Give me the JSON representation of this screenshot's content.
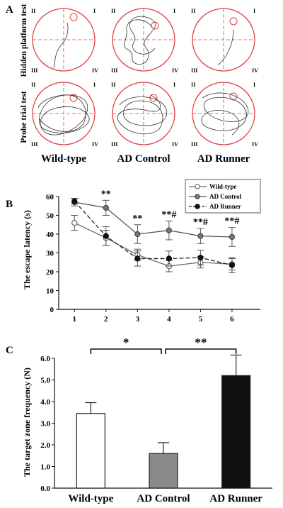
{
  "panel_a": {
    "letter": "A",
    "row_labels": [
      "Hidden platform test",
      "Probe trial test"
    ],
    "group_labels": [
      "Wild-type",
      "AD Control",
      "AD Runner"
    ],
    "quadrant_labels": [
      "II",
      "I",
      "III",
      "IV"
    ],
    "colors": {
      "pool": "#e14040",
      "path": "#333333"
    }
  },
  "chart_data": [
    {
      "type": "line",
      "panel": "B",
      "title": "",
      "xlabel": "",
      "ylabel": "The escape latency (s)",
      "x": [
        1,
        2,
        3,
        4,
        5,
        6
      ],
      "xlim": [
        0.5,
        6.9
      ],
      "ylim": [
        0,
        60
      ],
      "yticks": [
        0,
        10,
        20,
        30,
        40,
        50,
        60
      ],
      "grid": false,
      "legend": "top-right",
      "series": [
        {
          "name": "Wild-type",
          "marker": "open-circle",
          "line": "solid",
          "values": [
            46,
            38,
            29,
            23,
            25,
            24
          ],
          "errors": [
            4,
            4,
            3,
            3,
            3,
            3
          ]
        },
        {
          "name": "AD Control",
          "marker": "gray-circle",
          "line": "solid",
          "values": [
            57,
            54,
            40,
            42,
            39,
            38.5
          ],
          "errors": [
            2,
            4,
            5,
            5,
            4,
            5
          ]
        },
        {
          "name": "AD Runner",
          "marker": "filled-circle",
          "line": "dashed",
          "values": [
            57.5,
            39,
            27,
            27,
            27.5,
            23.5
          ],
          "errors": [
            1.5,
            5,
            4,
            4,
            4,
            4
          ]
        }
      ],
      "annotations": [
        {
          "x": 2,
          "text": "**"
        },
        {
          "x": 3,
          "text": "**"
        },
        {
          "x": 4,
          "text": "**#"
        },
        {
          "x": 5,
          "text": "**#"
        },
        {
          "x": 6,
          "text": "**#"
        }
      ]
    },
    {
      "type": "bar",
      "panel": "C",
      "title": "",
      "xlabel": "",
      "ylabel": "The target zone frequency (N)",
      "categories": [
        "Wild-type",
        "AD Control",
        "AD Runner"
      ],
      "values": [
        3.45,
        1.6,
        5.2
      ],
      "errors": [
        0.5,
        0.5,
        0.95
      ],
      "colors": [
        "#ffffff",
        "#8a8a8a",
        "#111111"
      ],
      "ylim": [
        0,
        6.0
      ],
      "yticks": [
        "0.0",
        "1.0",
        "2.0",
        "3.0",
        "4.0",
        "5.0",
        "6.0"
      ],
      "grid": false,
      "significance": [
        {
          "between": [
            "Wild-type",
            "AD Control"
          ],
          "text": "*"
        },
        {
          "between": [
            "AD Control",
            "AD Runner"
          ],
          "text": "**"
        }
      ]
    }
  ],
  "panel_letters": {
    "b": "B",
    "c": "C"
  }
}
